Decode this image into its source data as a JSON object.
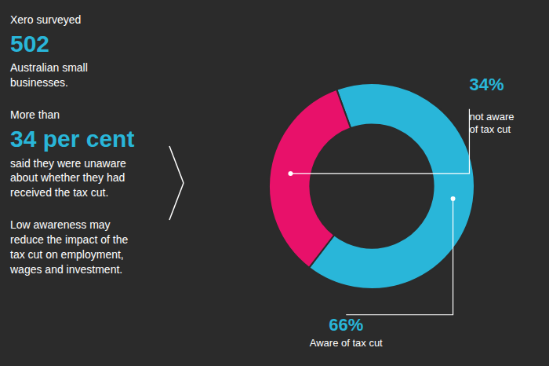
{
  "chart_data": {
    "type": "donut",
    "categories": [
      "Aware of tax cut",
      "not aware\nof tax cut"
    ],
    "values": [
      66,
      34
    ],
    "value_labels": [
      "66%",
      "34%"
    ],
    "colors": [
      "#29b6d9",
      "#e8116a"
    ],
    "data_labels": true,
    "annotations": [
      {
        "text": "Xero surveyed",
        "color": "#ffffff"
      },
      {
        "text": "502",
        "color": "#29b6d9"
      },
      {
        "text": "Australian small\nbusinesses.",
        "color": "#ffffff"
      },
      {
        "text": "More than",
        "color": "#ffffff"
      },
      {
        "text": "34 per cent",
        "color": "#29b6d9"
      },
      {
        "text": "said they were unaware\nabout whether they had\nreceived the tax cut.",
        "color": "#ffffff"
      },
      {
        "text": "Low awareness may\nreduce the impact of the\ntax cut on employment,\nwages and investment.",
        "color": "#ffffff"
      }
    ]
  }
}
